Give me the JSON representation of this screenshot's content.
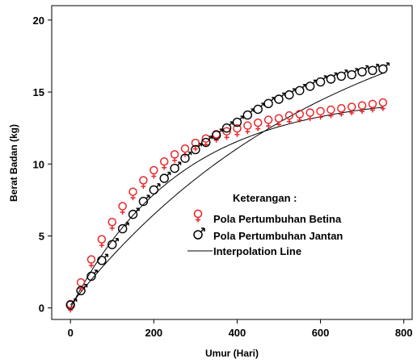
{
  "chart_data": {
    "type": "scatter",
    "title": "",
    "xlabel": "Umur (Hari)",
    "ylabel": "Berat Badan (kg)",
    "xlim": [
      -45,
      820
    ],
    "ylim": [
      -0.8,
      21
    ],
    "xticks": [
      0,
      200,
      400,
      600,
      800
    ],
    "yticks": [
      0,
      5,
      10,
      15,
      20
    ],
    "grid": false,
    "legend": {
      "title": "Keterangan :",
      "position": "center-right",
      "items": [
        {
          "key": "betina",
          "label": "Pola Pertumbuhan  Betina",
          "symbol": "female-symbol"
        },
        {
          "key": "jantan",
          "label": "Pola Pertumbuhan  Jantan",
          "symbol": "male-symbol"
        },
        {
          "key": "line",
          "label": "Interpolation Line",
          "symbol": "line"
        }
      ]
    },
    "series": [
      {
        "name": "Pola Pertumbuhan  Betina",
        "color": "#e8282b",
        "x": [
          0,
          25,
          50,
          75,
          100,
          125,
          150,
          175,
          200,
          225,
          250,
          275,
          300,
          325,
          350,
          375,
          400,
          425,
          450,
          475,
          500,
          525,
          550,
          575,
          600,
          625,
          650,
          675,
          700,
          725,
          750
        ],
        "y": [
          0.1,
          1.6,
          3.2,
          4.6,
          5.8,
          6.9,
          7.9,
          8.7,
          9.4,
          10.0,
          10.5,
          10.9,
          11.3,
          11.6,
          11.9,
          12.1,
          12.3,
          12.5,
          12.7,
          12.9,
          13.0,
          13.2,
          13.3,
          13.4,
          13.5,
          13.6,
          13.7,
          13.8,
          13.9,
          14.0,
          14.1
        ]
      },
      {
        "name": "Pola Pertumbuhan  Jantan",
        "color": "#000000",
        "x": [
          0,
          25,
          50,
          75,
          100,
          125,
          150,
          175,
          200,
          225,
          250,
          275,
          300,
          325,
          350,
          375,
          400,
          425,
          450,
          475,
          500,
          525,
          550,
          575,
          600,
          625,
          650,
          675,
          700,
          725,
          750
        ],
        "y": [
          0.2,
          1.2,
          2.2,
          3.3,
          4.4,
          5.5,
          6.5,
          7.4,
          8.2,
          9.0,
          9.7,
          10.4,
          11.0,
          11.5,
          12.0,
          12.5,
          12.9,
          13.4,
          13.8,
          14.2,
          14.5,
          14.8,
          15.1,
          15.4,
          15.7,
          15.9,
          16.1,
          16.2,
          16.4,
          16.5,
          16.6
        ]
      }
    ],
    "lines": [
      {
        "kind": "exp",
        "a": 14.8,
        "k": 0.0038,
        "b": 0.0,
        "x0": 0,
        "x1": 750,
        "color": "#000000"
      },
      {
        "kind": "exp",
        "a": 23.2,
        "k": 0.00158,
        "b": 0.2,
        "x0": 0,
        "x1": 750,
        "color": "#000000"
      }
    ]
  }
}
